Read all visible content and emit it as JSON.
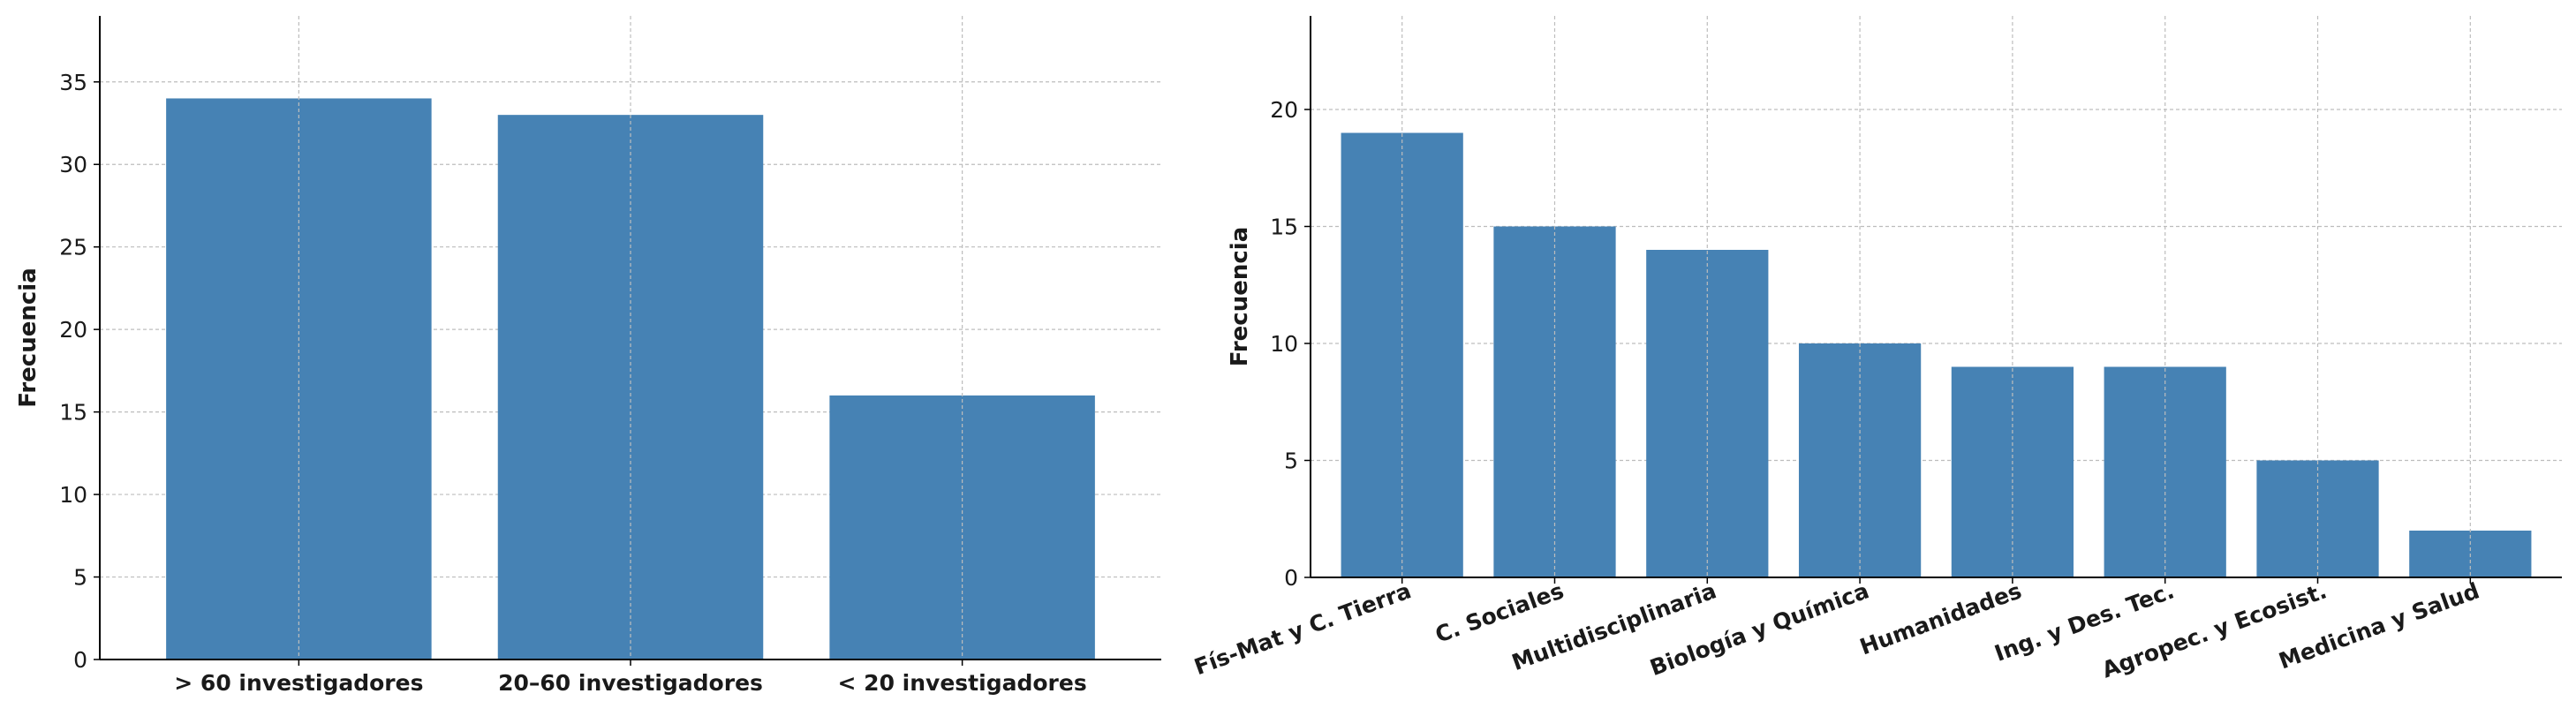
{
  "chart_data": [
    {
      "type": "bar",
      "categories": [
        "> 60 investigadores",
        "20–60 investigadores",
        "< 20 investigadores"
      ],
      "values": [
        34,
        33,
        16
      ],
      "title": "",
      "xlabel": "",
      "ylabel": "Frecuencia",
      "ylim": [
        0,
        39
      ],
      "yticks": [
        0,
        5,
        10,
        15,
        20,
        25,
        30,
        35
      ],
      "grid": true,
      "color": "#4682b4"
    },
    {
      "type": "bar",
      "categories": [
        "Fís-Mat y C. Tierra",
        "C. Sociales",
        "Multidisciplinaria",
        "Biología y Química",
        "Humanidades",
        "Ing. y Des. Tec.",
        "Agropec. y Ecosist.",
        "Medicina y Salud"
      ],
      "values": [
        19,
        15,
        14,
        10,
        9,
        9,
        5,
        2
      ],
      "title": "",
      "xlabel": "",
      "ylabel": "Frecuencia",
      "ylim": [
        0,
        24
      ],
      "yticks": [
        0,
        5,
        10,
        15,
        20
      ],
      "grid": true,
      "color": "#4682b4"
    }
  ]
}
